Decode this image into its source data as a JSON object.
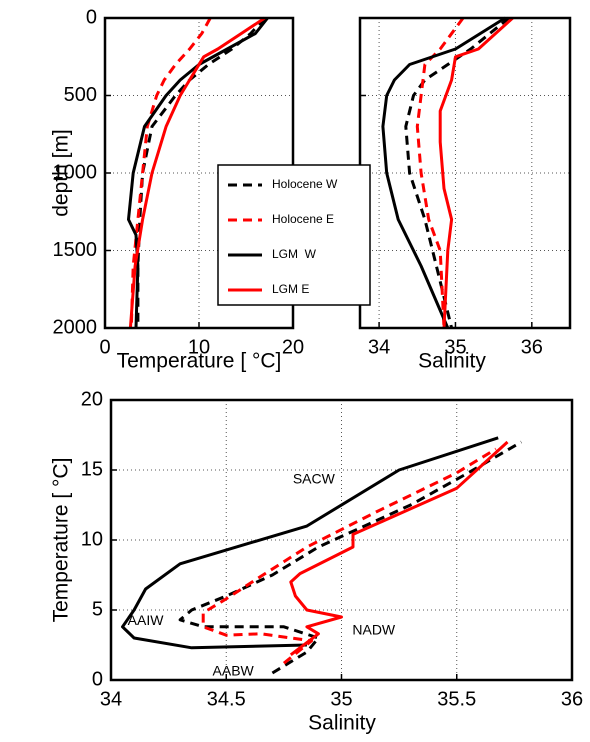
{
  "chart_data": [
    {
      "type": "line",
      "xlabel": "Temperature [ °C]",
      "ylabel": "depth [m]",
      "xlim": [
        0,
        20
      ],
      "ylim": [
        0,
        2000
      ],
      "xticks": [
        0,
        10,
        20
      ],
      "yticks": [
        0,
        500,
        1000,
        1500,
        2000
      ],
      "y_inverted": true,
      "grid": true,
      "legend": true,
      "show_ytick_labels": true,
      "series": [
        {
          "name": "Holocene W",
          "color": "#000000",
          "dashed": true,
          "x": [
            17,
            15.5,
            13.5,
            11,
            9,
            7.5,
            5,
            4,
            3.7,
            3.5,
            3.5
          ],
          "y": [
            0,
            100,
            200,
            300,
            400,
            500,
            700,
            1000,
            1300,
            1600,
            2000
          ]
        },
        {
          "name": "Holocene E",
          "color": "#ff0000",
          "dashed": true,
          "x": [
            11.2,
            10.3,
            9,
            7.5,
            6.3,
            5.5,
            4.5,
            4,
            3.5,
            3,
            2.8
          ],
          "y": [
            0,
            100,
            200,
            300,
            400,
            500,
            700,
            1000,
            1300,
            1600,
            2000
          ]
        },
        {
          "name": "LGM  W",
          "color": "#000000",
          "dashed": false,
          "x": [
            17.3,
            16,
            13,
            10,
            8,
            6.5,
            4.2,
            3,
            2.5,
            3.3,
            3.5,
            3.3
          ],
          "y": [
            0,
            100,
            200,
            300,
            400,
            500,
            700,
            1000,
            1300,
            1400,
            1600,
            2000
          ]
        },
        {
          "name": "LGM E",
          "color": "#ff0000",
          "dashed": false,
          "x": [
            17,
            14.5,
            12,
            10.5,
            9,
            8,
            6.5,
            5,
            4,
            3.2,
            2.7
          ],
          "y": [
            0,
            100,
            200,
            250,
            400,
            500,
            700,
            1000,
            1300,
            1600,
            2000
          ]
        }
      ]
    },
    {
      "type": "line",
      "xlabel": "Salinity",
      "xlim": [
        33.75,
        36.5
      ],
      "ylim": [
        0,
        2000
      ],
      "xticks": [
        34,
        35,
        36
      ],
      "yticks": [
        0,
        500,
        1000,
        1500,
        2000
      ],
      "y_inverted": true,
      "grid": true,
      "legend": false,
      "show_ytick_labels": false,
      "series": [
        {
          "name": "Holocene W",
          "color": "#000000",
          "dashed": true,
          "x": [
            35.7,
            35.2,
            34.9,
            34.6,
            34.45,
            34.35,
            34.4,
            34.6,
            34.75,
            34.95
          ],
          "y": [
            0,
            200,
            300,
            400,
            500,
            700,
            1000,
            1300,
            1600,
            2000
          ]
        },
        {
          "name": "Holocene E",
          "color": "#ff0000",
          "dashed": true,
          "x": [
            35.1,
            34.8,
            34.6,
            34.55,
            34.5,
            34.55,
            34.65,
            34.8,
            34.85
          ],
          "y": [
            0,
            200,
            300,
            500,
            700,
            1000,
            1300,
            1500,
            2000
          ]
        },
        {
          "name": "LGM  W",
          "color": "#000000",
          "dashed": false,
          "x": [
            35.65,
            35.0,
            34.4,
            34.2,
            34.1,
            34.05,
            34.1,
            34.25,
            34.55,
            34.9
          ],
          "y": [
            0,
            200,
            300,
            400,
            500,
            700,
            1000,
            1300,
            1600,
            2000
          ]
        },
        {
          "name": "LGM E",
          "color": "#ff0000",
          "dashed": false,
          "x": [
            35.75,
            35.3,
            35.0,
            34.95,
            34.8,
            34.8,
            34.85,
            34.95,
            34.9,
            34.85
          ],
          "y": [
            0,
            200,
            250,
            400,
            600,
            800,
            1100,
            1300,
            1500,
            2000
          ]
        }
      ]
    },
    {
      "type": "line",
      "xlabel": "Salinity",
      "ylabel": "Temperature [ °C]",
      "xlim": [
        34,
        36
      ],
      "ylim": [
        0,
        20
      ],
      "xticks": [
        34,
        34.5,
        35,
        35.5,
        36
      ],
      "yticks": [
        0,
        5,
        10,
        15,
        20
      ],
      "y_inverted": false,
      "grid": true,
      "legend": false,
      "show_ytick_labels": true,
      "series": [
        {
          "name": "Holocene W",
          "color": "#000000",
          "dashed": true,
          "x": [
            34.7,
            34.85,
            34.9,
            34.75,
            34.4,
            34.3,
            34.35,
            34.5,
            34.7,
            34.9,
            35.3,
            35.55,
            35.78
          ],
          "y": [
            0.5,
            2,
            3,
            3.8,
            3.8,
            4.3,
            5,
            6,
            7.5,
            9.5,
            12.5,
            14.8,
            17
          ]
        },
        {
          "name": "Holocene E",
          "color": "#ff0000",
          "dashed": true,
          "x": [
            34.75,
            34.87,
            34.65,
            34.5,
            34.4,
            34.4,
            34.5,
            34.65,
            34.85,
            35.15,
            35.5,
            35.67
          ],
          "y": [
            1.2,
            2.8,
            3.3,
            3.2,
            3.8,
            4.8,
            5.8,
            7.4,
            9.5,
            12,
            14.8,
            16.5
          ]
        },
        {
          "name": "LGM  W",
          "color": "#000000",
          "dashed": false,
          "x": [
            34.85,
            34.35,
            34.1,
            34.05,
            34.1,
            34.15,
            34.3,
            34.85,
            35.25,
            35.68
          ],
          "y": [
            2.5,
            2.3,
            3,
            3.8,
            5,
            6.5,
            8.3,
            11,
            15,
            17.3
          ]
        },
        {
          "name": "LGM E",
          "color": "#ff0000",
          "dashed": false,
          "x": [
            34.78,
            34.9,
            34.85,
            35.0,
            34.85,
            34.8,
            34.78,
            34.82,
            35.05,
            35.05,
            35.5,
            35.72
          ],
          "y": [
            1.8,
            3.3,
            3.8,
            4.5,
            5,
            6,
            7,
            7.6,
            9.5,
            10.4,
            13.7,
            17
          ]
        }
      ],
      "annotations": [
        {
          "text": "SACW",
          "x": 34.88,
          "y": 14.3
        },
        {
          "text": "AAIW",
          "x": 34.15,
          "y": 4.2
        },
        {
          "text": "NADW",
          "x": 35.14,
          "y": 3.5
        },
        {
          "text": "AABW",
          "x": 34.53,
          "y": 0.6
        }
      ]
    }
  ]
}
